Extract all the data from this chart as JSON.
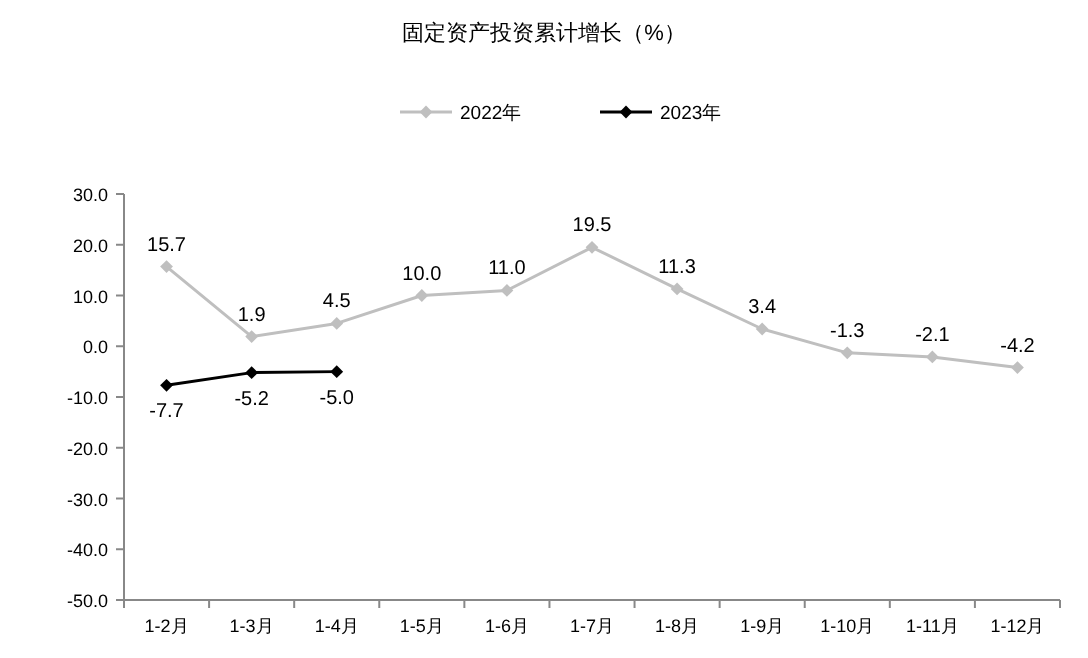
{
  "chart_data": {
    "type": "line",
    "title": "固定资产投资累计增长（%）",
    "categories": [
      "1-2月",
      "1-3月",
      "1-4月",
      "1-5月",
      "1-6月",
      "1-7月",
      "1-8月",
      "1-9月",
      "1-10月",
      "1-11月",
      "1-12月"
    ],
    "series": [
      {
        "name": "2022年",
        "color": "#bfbfbf",
        "values": [
          15.7,
          1.9,
          4.5,
          10.0,
          11.0,
          19.5,
          11.3,
          3.4,
          -1.3,
          -2.1,
          -4.2
        ],
        "value_labels": [
          "15.7",
          "1.9",
          "4.5",
          "10.0",
          "11.0",
          "19.5",
          "11.3",
          "3.4",
          "-1.3",
          "-2.1",
          "-4.2"
        ]
      },
      {
        "name": "2023年",
        "color": "#000000",
        "values": [
          -7.7,
          -5.2,
          -5.0,
          null,
          null,
          null,
          null,
          null,
          null,
          null,
          null
        ],
        "value_labels": [
          "-7.7",
          "-5.2",
          "-5.0",
          null,
          null,
          null,
          null,
          null,
          null,
          null,
          null
        ]
      }
    ],
    "ylim": [
      -50,
      30
    ],
    "yticks": [
      {
        "value": 30,
        "label": "30.0"
      },
      {
        "value": 20,
        "label": "20.0"
      },
      {
        "value": 10,
        "label": "10.0"
      },
      {
        "value": 0,
        "label": "0.0"
      },
      {
        "value": -10,
        "label": "-10.0"
      },
      {
        "value": -20,
        "label": "-20.0"
      },
      {
        "value": -30,
        "label": "-30.0"
      },
      {
        "value": -40,
        "label": "-40.0"
      },
      {
        "value": -50,
        "label": "-50.0"
      }
    ],
    "grid": false,
    "legend": "top",
    "marker": "diamond",
    "line_style": "solid"
  }
}
